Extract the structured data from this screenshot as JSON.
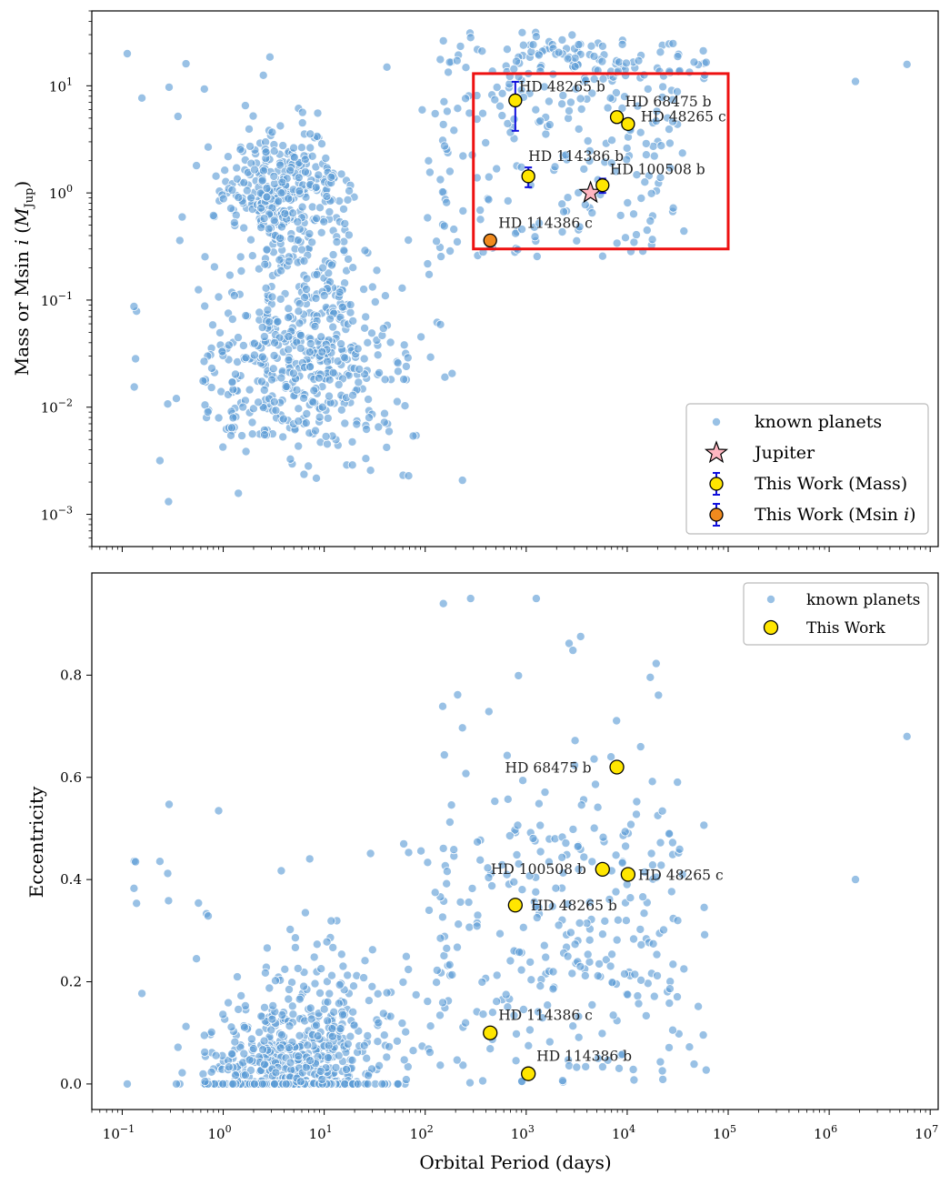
{
  "colors": {
    "known": "#5B9BD5",
    "this_work_mass": "#FFE600",
    "this_work_msini": "#F08A1E",
    "jupiter": "#FFB6C1",
    "errorbar": "#1010DD",
    "highlight_box": "#EE1111"
  },
  "chart_data": [
    {
      "type": "scatter",
      "x_scale": "log",
      "y_scale": "log",
      "xlim": [
        0.05,
        12000000
      ],
      "ylim": [
        0.0005,
        50
      ],
      "ylabel": "Mass or Msin i (Mjup)",
      "y_ticks": [
        {
          "value": 0.001,
          "base": "10",
          "exp": "−3"
        },
        {
          "value": 0.01,
          "base": "10",
          "exp": "−2"
        },
        {
          "value": 0.1,
          "base": "10",
          "exp": "−1"
        },
        {
          "value": 1,
          "base": "10",
          "exp": "0"
        },
        {
          "value": 10,
          "base": "10",
          "exp": "1"
        }
      ],
      "legend": {
        "position": "lower right",
        "entries": [
          "known planets",
          "Jupiter",
          "This Work (Mass)",
          "This Work (Msin i)"
        ]
      },
      "highlight_box": {
        "x": [
          300,
          100000
        ],
        "y": [
          0.3,
          13
        ]
      },
      "jupiter": {
        "x": 4333,
        "y": 1.0
      },
      "this_work": [
        {
          "name": "HD 48265 b",
          "x": 780,
          "y": 7.3,
          "err_low": 3.5,
          "err_high": 3.6,
          "kind": "mass"
        },
        {
          "name": "HD 68475 b",
          "x": 7900,
          "y": 5.1,
          "kind": "mass"
        },
        {
          "name": "HD 48265 c",
          "x": 10200,
          "y": 4.4,
          "kind": "mass"
        },
        {
          "name": "HD 114386 b",
          "x": 1050,
          "y": 1.43,
          "err_low": 0.3,
          "err_high": 0.3,
          "kind": "mass"
        },
        {
          "name": "HD 100508 b",
          "x": 5700,
          "y": 1.18,
          "err_low": 0.18,
          "err_high": 0.18,
          "kind": "mass"
        },
        {
          "name": "HD 114386 c",
          "x": 440,
          "y": 0.36,
          "kind": "msini"
        }
      ]
    },
    {
      "type": "scatter",
      "x_scale": "log",
      "y_scale": "linear",
      "xlim": [
        0.05,
        12000000
      ],
      "ylim": [
        -0.05,
        1.0
      ],
      "xlabel": "Orbital Period (days)",
      "ylabel": "Eccentricity",
      "y_ticks": [
        "0.0",
        "0.2",
        "0.4",
        "0.6",
        "0.8"
      ],
      "x_ticks": [
        {
          "value": 0.1,
          "base": "10",
          "exp": "−1"
        },
        {
          "value": 1,
          "base": "10",
          "exp": "0"
        },
        {
          "value": 10,
          "base": "10",
          "exp": "1"
        },
        {
          "value": 100,
          "base": "10",
          "exp": "2"
        },
        {
          "value": 1000,
          "base": "10",
          "exp": "3"
        },
        {
          "value": 10000,
          "base": "10",
          "exp": "4"
        },
        {
          "value": 100000,
          "base": "10",
          "exp": "5"
        },
        {
          "value": 1000000,
          "base": "10",
          "exp": "6"
        },
        {
          "value": 10000000,
          "base": "10",
          "exp": "7"
        }
      ],
      "legend": {
        "position": "upper right",
        "entries": [
          "known planets",
          "This Work"
        ]
      },
      "this_work": [
        {
          "name": "HD 68475 b",
          "x": 7900,
          "y": 0.62
        },
        {
          "name": "HD 100508 b",
          "x": 5700,
          "y": 0.42
        },
        {
          "name": "HD 48265 c",
          "x": 10200,
          "y": 0.41
        },
        {
          "name": "HD 48265 b",
          "x": 780,
          "y": 0.35
        },
        {
          "name": "HD 114386 c",
          "x": 440,
          "y": 0.1
        },
        {
          "name": "HD 114386 b",
          "x": 1050,
          "y": 0.02
        }
      ]
    }
  ]
}
